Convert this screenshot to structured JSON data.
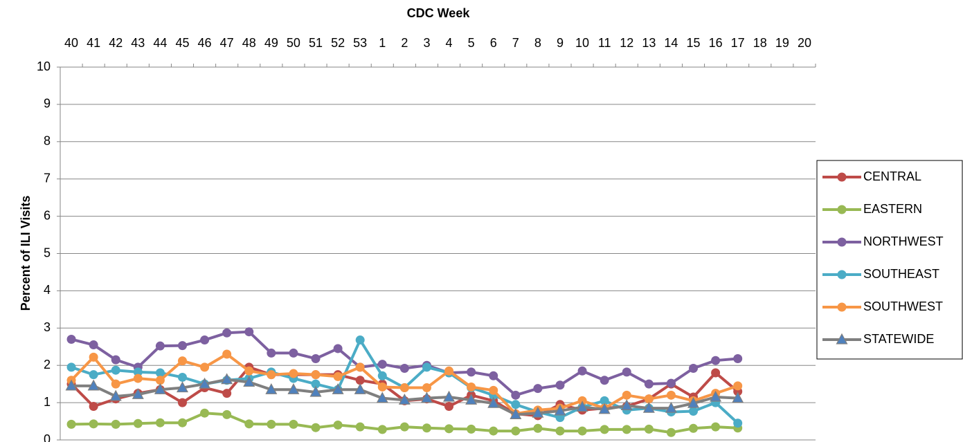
{
  "chart_data": {
    "type": "line",
    "x_label": "CDC Week",
    "y_label": "Percent of ILI Visits",
    "categories": [
      "40",
      "41",
      "42",
      "43",
      "44",
      "45",
      "46",
      "47",
      "48",
      "49",
      "50",
      "51",
      "52",
      "53",
      "1",
      "2",
      "3",
      "4",
      "5",
      "6",
      "7",
      "8",
      "9",
      "10",
      "11",
      "12",
      "13",
      "14",
      "15",
      "16",
      "17",
      "18",
      "19",
      "20"
    ],
    "ylim": [
      0,
      10
    ],
    "yticks": [
      0,
      1,
      2,
      3,
      4,
      5,
      6,
      7,
      8,
      9,
      10
    ],
    "grid": true,
    "legend": "right",
    "series": [
      {
        "name": "CENTRAL",
        "color": "#be4b48",
        "marker": "circle",
        "values": [
          1.5,
          0.9,
          1.1,
          1.25,
          1.35,
          1.0,
          1.4,
          1.25,
          1.95,
          1.75,
          1.75,
          1.75,
          1.75,
          1.6,
          1.5,
          1.05,
          1.1,
          0.9,
          1.2,
          1.05,
          0.7,
          0.65,
          0.95,
          0.8,
          0.85,
          0.9,
          1.1,
          1.5,
          1.15,
          1.8,
          1.3,
          null,
          null,
          null
        ]
      },
      {
        "name": "EASTERN",
        "color": "#98b954",
        "marker": "circle",
        "values": [
          0.42,
          0.43,
          0.42,
          0.44,
          0.46,
          0.46,
          0.72,
          0.68,
          0.43,
          0.42,
          0.42,
          0.33,
          0.4,
          0.35,
          0.28,
          0.35,
          0.32,
          0.3,
          0.29,
          0.24,
          0.24,
          0.31,
          0.24,
          0.24,
          0.28,
          0.28,
          0.29,
          0.2,
          0.31,
          0.35,
          0.32,
          null,
          null,
          null
        ]
      },
      {
        "name": "NORTHWEST",
        "color": "#7d60a0",
        "marker": "circle",
        "values": [
          2.7,
          2.55,
          2.15,
          1.95,
          2.52,
          2.53,
          2.68,
          2.87,
          2.9,
          2.33,
          2.33,
          2.18,
          2.45,
          1.95,
          2.03,
          1.92,
          2.0,
          1.8,
          1.82,
          1.72,
          1.2,
          1.38,
          1.47,
          1.85,
          1.6,
          1.82,
          1.5,
          1.52,
          1.92,
          2.13,
          2.18,
          null,
          null,
          null
        ]
      },
      {
        "name": "SOUTHEAST",
        "color": "#4bacc6",
        "marker": "circle",
        "values": [
          1.95,
          1.75,
          1.87,
          1.82,
          1.8,
          1.68,
          1.5,
          1.6,
          1.65,
          1.82,
          1.65,
          1.5,
          1.35,
          2.68,
          1.72,
          1.4,
          1.95,
          1.8,
          1.4,
          1.2,
          0.95,
          0.75,
          0.6,
          0.88,
          1.05,
          0.8,
          0.85,
          0.75,
          0.77,
          1.0,
          0.45,
          null,
          null,
          null
        ]
      },
      {
        "name": "SOUTHWEST",
        "color": "#f79646",
        "marker": "circle",
        "values": [
          1.6,
          2.22,
          1.5,
          1.65,
          1.6,
          2.12,
          1.95,
          2.3,
          1.85,
          1.75,
          1.78,
          1.75,
          1.7,
          1.95,
          1.42,
          1.4,
          1.4,
          1.85,
          1.42,
          1.33,
          0.7,
          0.8,
          0.85,
          1.05,
          0.85,
          1.2,
          1.1,
          1.2,
          1.05,
          1.25,
          1.45,
          null,
          null,
          null
        ]
      },
      {
        "name": "STATEWIDE",
        "color": "#7f7f7f",
        "marker": "triangle",
        "marker_fill": "#4f81bd",
        "values": [
          1.45,
          1.45,
          1.17,
          1.22,
          1.35,
          1.4,
          1.5,
          1.62,
          1.55,
          1.35,
          1.35,
          1.28,
          1.35,
          1.35,
          1.12,
          1.07,
          1.12,
          1.15,
          1.07,
          0.98,
          0.68,
          0.72,
          0.78,
          0.88,
          0.82,
          0.92,
          0.85,
          0.85,
          0.98,
          1.15,
          1.12,
          null,
          null,
          null
        ]
      }
    ]
  }
}
